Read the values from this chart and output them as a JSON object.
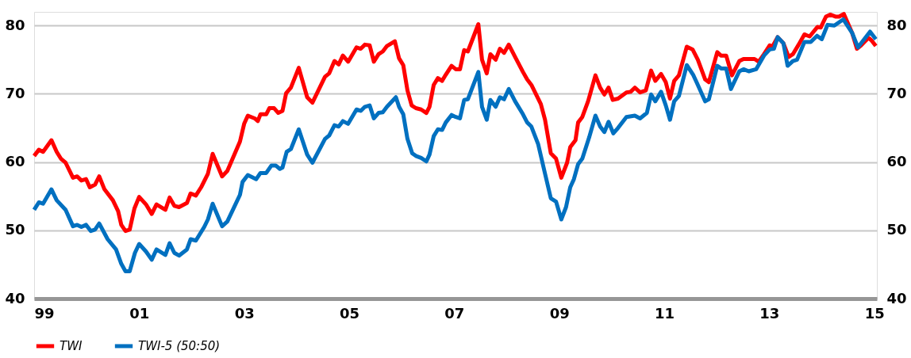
{
  "chart_data": {
    "type": "line",
    "xlim": [
      1999,
      2015.05
    ],
    "xticks": [
      {
        "value": 1999,
        "label": "99"
      },
      {
        "value": 2001,
        "label": "01"
      },
      {
        "value": 2003,
        "label": "03"
      },
      {
        "value": 2005,
        "label": "05"
      },
      {
        "value": 2007,
        "label": "07"
      },
      {
        "value": 2009,
        "label": "09"
      },
      {
        "value": 2011,
        "label": "11"
      },
      {
        "value": 2013,
        "label": "13"
      },
      {
        "value": 2015,
        "label": "15"
      }
    ],
    "ylim": [
      40,
      82
    ],
    "yticks": [
      40,
      50,
      60,
      70,
      80
    ],
    "y2lim": [
      40,
      82
    ],
    "y2ticks": [
      40,
      50,
      60,
      70,
      80
    ],
    "grid": "y",
    "legend": "bottom",
    "line_style": "solid",
    "marker": "none",
    "series": [
      {
        "name": "TWI",
        "color": "#ff0000",
        "x": [
          1999.0,
          1999.09,
          1999.17,
          1999.33,
          1999.43,
          1999.51,
          1999.6,
          1999.74,
          1999.82,
          1999.9,
          1999.99,
          2000.06,
          2000.16,
          2000.24,
          2000.34,
          2000.5,
          2000.6,
          2000.66,
          2000.74,
          2000.82,
          2000.91,
          2001.0,
          2001.13,
          2001.24,
          2001.33,
          2001.5,
          2001.58,
          2001.67,
          2001.76,
          2001.91,
          2001.98,
          2002.08,
          2002.18,
          2002.31,
          2002.4,
          2002.58,
          2002.68,
          2002.92,
          2003.0,
          2003.07,
          2003.2,
          2003.26,
          2003.31,
          2003.42,
          2003.48,
          2003.57,
          2003.65,
          2003.73,
          2003.8,
          2003.89,
          2004.04,
          2004.2,
          2004.3,
          2004.54,
          2004.62,
          2004.72,
          2004.8,
          2004.88,
          2004.98,
          2005.14,
          2005.22,
          2005.3,
          2005.39,
          2005.47,
          2005.56,
          2005.64,
          2005.72,
          2005.87,
          2005.95,
          2006.03,
          2006.11,
          2006.19,
          2006.27,
          2006.37,
          2006.47,
          2006.53,
          2006.61,
          2006.69,
          2006.77,
          2006.84,
          2006.95,
          2007.03,
          2007.11,
          2007.19,
          2007.26,
          2007.46,
          2007.53,
          2007.62,
          2007.69,
          2007.79,
          2007.87,
          2007.95,
          2008.04,
          2008.16,
          2008.31,
          2008.39,
          2008.47,
          2008.65,
          2008.73,
          2008.84,
          2008.94,
          2009.04,
          2009.15,
          2009.21,
          2009.31,
          2009.36,
          2009.44,
          2009.55,
          2009.69,
          2009.78,
          2009.86,
          2009.94,
          2010.02,
          2010.12,
          2010.28,
          2010.36,
          2010.44,
          2010.54,
          2010.65,
          2010.75,
          2010.83,
          2010.94,
          2011.03,
          2011.11,
          2011.19,
          2011.28,
          2011.43,
          2011.54,
          2011.64,
          2011.78,
          2011.85,
          2012.01,
          2012.08,
          2012.18,
          2012.29,
          2012.43,
          2012.51,
          2012.72,
          2012.8,
          2012.9,
          2013.01,
          2013.06,
          2013.16,
          2013.27,
          2013.37,
          2013.45,
          2013.56,
          2013.67,
          2013.77,
          2013.92,
          2013.98,
          2014.08,
          2014.16,
          2014.27,
          2014.33,
          2014.42,
          2014.58,
          2014.67,
          2014.75,
          2014.89,
          2014.95,
          2015.03
        ],
        "values": [
          60.9,
          61.8,
          61.5,
          63.2,
          61.5,
          60.5,
          59.9,
          57.7,
          57.9,
          57.3,
          57.5,
          56.3,
          56.7,
          57.9,
          56.0,
          54.4,
          52.8,
          50.8,
          49.9,
          50.1,
          53.2,
          54.9,
          53.8,
          52.4,
          53.8,
          53.0,
          54.8,
          53.6,
          53.4,
          54.0,
          55.4,
          55.1,
          56.3,
          58.3,
          61.2,
          57.9,
          58.7,
          63.0,
          65.6,
          66.8,
          66.4,
          66.0,
          67.0,
          67.0,
          67.9,
          67.9,
          67.2,
          67.5,
          70.1,
          70.9,
          73.8,
          69.5,
          68.7,
          72.5,
          73.0,
          74.8,
          74.3,
          75.6,
          74.7,
          76.8,
          76.6,
          77.2,
          77.1,
          74.7,
          75.8,
          76.2,
          77.0,
          77.7,
          75.2,
          74.2,
          70.5,
          68.3,
          67.9,
          67.7,
          67.2,
          68.1,
          71.3,
          72.3,
          71.9,
          72.8,
          74.1,
          73.6,
          73.6,
          76.4,
          76.2,
          80.2,
          75.0,
          73.0,
          75.8,
          75.0,
          76.6,
          76.0,
          77.2,
          75.4,
          73.2,
          72.1,
          71.3,
          68.5,
          66.2,
          61.3,
          60.5,
          57.7,
          59.9,
          62.2,
          63.2,
          65.8,
          66.6,
          68.9,
          72.7,
          70.9,
          69.9,
          70.9,
          69.1,
          69.3,
          70.2,
          70.3,
          70.9,
          70.2,
          70.5,
          73.4,
          71.9,
          72.9,
          71.7,
          69.3,
          71.9,
          72.7,
          76.9,
          76.5,
          75.0,
          72.1,
          71.7,
          76.1,
          75.6,
          75.6,
          72.7,
          74.8,
          75.1,
          75.1,
          74.7,
          75.8,
          77.1,
          76.9,
          78.3,
          77.4,
          75.4,
          75.8,
          77.2,
          78.7,
          78.4,
          79.8,
          79.7,
          81.3,
          81.6,
          81.3,
          81.3,
          81.7,
          78.9,
          76.6,
          77.1,
          78.2,
          77.8,
          77.0
        ]
      },
      {
        "name": "TWI-5 (50:50)",
        "color": "#0070c0",
        "x": [
          1999.0,
          1999.09,
          1999.17,
          1999.33,
          1999.43,
          1999.6,
          1999.74,
          1999.82,
          1999.9,
          1999.99,
          2000.08,
          2000.16,
          2000.24,
          2000.4,
          2000.56,
          2000.66,
          2000.74,
          2000.82,
          2000.92,
          2001.0,
          2001.13,
          2001.24,
          2001.33,
          2001.5,
          2001.58,
          2001.67,
          2001.76,
          2001.91,
          2001.98,
          2002.08,
          2002.24,
          2002.31,
          2002.4,
          2002.58,
          2002.68,
          2002.92,
          2002.97,
          2003.07,
          2003.23,
          2003.31,
          2003.42,
          2003.52,
          2003.6,
          2003.68,
          2003.73,
          2003.81,
          2003.89,
          2004.04,
          2004.2,
          2004.3,
          2004.54,
          2004.62,
          2004.72,
          2004.8,
          2004.88,
          2004.98,
          2005.14,
          2005.22,
          2005.3,
          2005.39,
          2005.47,
          2005.56,
          2005.64,
          2005.72,
          2005.89,
          2005.95,
          2006.03,
          2006.11,
          2006.2,
          2006.27,
          2006.37,
          2006.47,
          2006.53,
          2006.61,
          2006.69,
          2006.77,
          2006.84,
          2006.95,
          2007.03,
          2007.11,
          2007.19,
          2007.26,
          2007.46,
          2007.53,
          2007.62,
          2007.69,
          2007.79,
          2007.87,
          2007.95,
          2008.04,
          2008.16,
          2008.31,
          2008.39,
          2008.47,
          2008.6,
          2008.73,
          2008.84,
          2008.94,
          2009.04,
          2009.13,
          2009.21,
          2009.28,
          2009.36,
          2009.44,
          2009.57,
          2009.69,
          2009.78,
          2009.86,
          2009.94,
          2010.03,
          2010.12,
          2010.28,
          2010.44,
          2010.54,
          2010.67,
          2010.75,
          2010.83,
          2010.94,
          2011.03,
          2011.11,
          2011.19,
          2011.28,
          2011.43,
          2011.55,
          2011.64,
          2011.78,
          2011.85,
          2012.01,
          2012.09,
          2012.18,
          2012.27,
          2012.43,
          2012.51,
          2012.61,
          2012.75,
          2012.9,
          2013.01,
          2013.09,
          2013.16,
          2013.27,
          2013.35,
          2013.45,
          2013.53,
          2013.67,
          2013.79,
          2013.91,
          2014.0,
          2014.11,
          2014.24,
          2014.41,
          2014.58,
          2014.69,
          2014.92,
          2015.03
        ],
        "values": [
          53.0,
          54.1,
          53.9,
          56.0,
          54.4,
          53.0,
          50.6,
          50.8,
          50.5,
          50.8,
          49.9,
          50.1,
          51.0,
          48.7,
          47.2,
          45.1,
          44.0,
          44.0,
          46.7,
          48.0,
          46.9,
          45.7,
          47.2,
          46.4,
          48.1,
          46.7,
          46.3,
          47.2,
          48.7,
          48.5,
          50.5,
          51.6,
          53.9,
          50.6,
          51.3,
          55.2,
          57.1,
          58.1,
          57.5,
          58.4,
          58.4,
          59.5,
          59.5,
          59.0,
          59.2,
          61.5,
          61.9,
          64.8,
          61.1,
          59.9,
          63.4,
          63.9,
          65.4,
          65.2,
          66.0,
          65.6,
          67.7,
          67.5,
          68.1,
          68.3,
          66.4,
          67.2,
          67.3,
          68.1,
          69.5,
          68.1,
          67.0,
          63.4,
          61.3,
          60.9,
          60.6,
          60.1,
          61.1,
          63.8,
          64.8,
          64.7,
          65.8,
          66.9,
          66.6,
          66.4,
          69.1,
          69.2,
          73.2,
          68.1,
          66.2,
          69.1,
          68.1,
          69.5,
          69.2,
          70.7,
          68.9,
          67.0,
          65.8,
          65.2,
          62.6,
          58.3,
          54.7,
          54.2,
          51.6,
          53.4,
          56.3,
          57.5,
          59.7,
          60.5,
          63.6,
          66.8,
          65.2,
          64.4,
          65.9,
          64.2,
          65.0,
          66.6,
          66.8,
          66.4,
          67.2,
          69.9,
          68.9,
          70.3,
          68.3,
          66.2,
          68.9,
          69.7,
          74.2,
          72.8,
          71.3,
          68.9,
          69.2,
          74.1,
          73.7,
          73.7,
          70.7,
          73.3,
          73.6,
          73.3,
          73.6,
          75.6,
          76.5,
          76.6,
          78.3,
          77.4,
          74.1,
          74.8,
          75.0,
          77.6,
          77.6,
          78.5,
          78.0,
          80.1,
          80.0,
          80.9,
          78.9,
          76.8,
          79.1,
          78.0
        ]
      }
    ]
  }
}
